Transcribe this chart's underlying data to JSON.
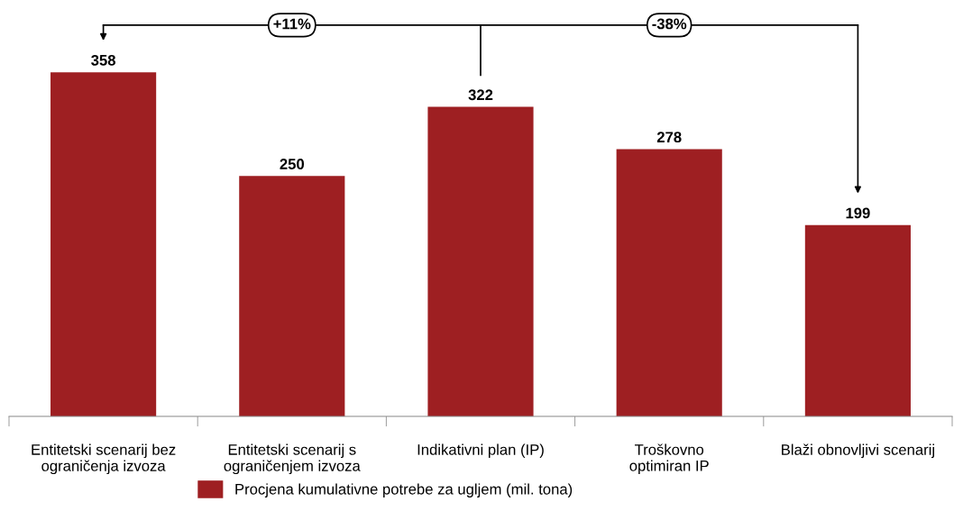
{
  "chart_data": {
    "type": "bar",
    "categories": [
      "Entitetski scenarij bez\nograničenja izvoza",
      "Entitetski scenarij s\nograničenjem izvoza",
      "Indikativni plan (IP)",
      "Troškovno\noptimiran IP",
      "Blaži obnovljivi scenarij"
    ],
    "series": [
      {
        "name": "Procjena kumulativne potrebe za ugljem (mil. tona)",
        "color": "#9e1f22",
        "values": [
          358,
          250,
          322,
          278,
          199
        ]
      }
    ],
    "data_labels": true,
    "annotations": [
      "+11%",
      "-38%"
    ],
    "legend": "bottom",
    "grid": false
  }
}
